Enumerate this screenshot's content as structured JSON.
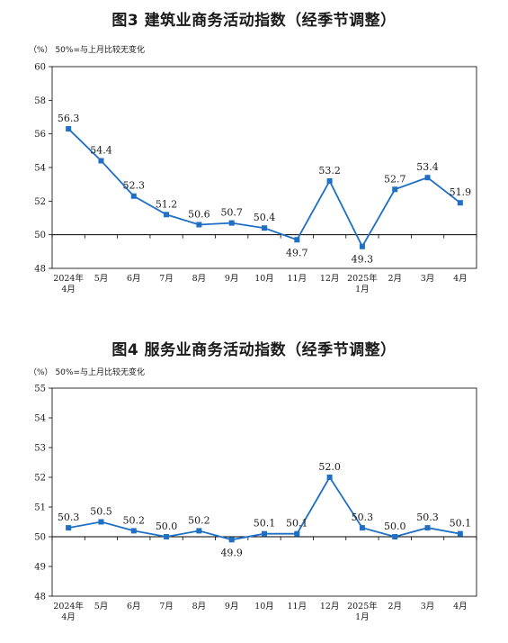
{
  "colors": {
    "line": "#1F6FC5",
    "axis": "#000000",
    "plot_border": "#000000"
  },
  "chart_data": [
    {
      "type": "line",
      "title": "图3  建筑业商务活动指数（经季节调整）",
      "ylabel": "（%）",
      "note": "50%=与上月比较无变化",
      "ylim": [
        48,
        60
      ],
      "yticks": [
        "48",
        "50",
        "52",
        "54",
        "56",
        "58",
        "60"
      ],
      "baseline": 50,
      "categories": [
        {
          "line1": "2024年",
          "line2": "4月"
        },
        {
          "line1": "5月",
          "line2": ""
        },
        {
          "line1": "6月",
          "line2": ""
        },
        {
          "line1": "7月",
          "line2": ""
        },
        {
          "line1": "8月",
          "line2": ""
        },
        {
          "line1": "9月",
          "line2": ""
        },
        {
          "line1": "10月",
          "line2": ""
        },
        {
          "line1": "11月",
          "line2": ""
        },
        {
          "line1": "12月",
          "line2": ""
        },
        {
          "line1": "2025年",
          "line2": "1月"
        },
        {
          "line1": "2月",
          "line2": ""
        },
        {
          "line1": "3月",
          "line2": ""
        },
        {
          "line1": "4月",
          "line2": ""
        }
      ],
      "values": [
        56.3,
        54.4,
        52.3,
        51.2,
        50.6,
        50.7,
        50.4,
        49.7,
        53.2,
        49.3,
        52.7,
        53.4,
        51.9
      ],
      "labels": [
        "56.3",
        "54.4",
        "52.3",
        "51.2",
        "50.6",
        "50.7",
        "50.4",
        "49.7",
        "53.2",
        "49.3",
        "52.7",
        "53.4",
        "51.9"
      ],
      "label_pos": [
        "above",
        "above",
        "above",
        "above",
        "above",
        "above",
        "above",
        "below",
        "above",
        "below",
        "above",
        "above",
        "above"
      ]
    },
    {
      "type": "line",
      "title": "图4  服务业商务活动指数（经季节调整）",
      "ylabel": "（%）",
      "note": "50%=与上月比较无变化",
      "ylim": [
        48,
        55
      ],
      "yticks": [
        "48",
        "49",
        "50",
        "51",
        "52",
        "53",
        "54",
        "55"
      ],
      "baseline": 50,
      "categories": [
        {
          "line1": "2024年",
          "line2": "4月"
        },
        {
          "line1": "5月",
          "line2": ""
        },
        {
          "line1": "6月",
          "line2": ""
        },
        {
          "line1": "7月",
          "line2": ""
        },
        {
          "line1": "8月",
          "line2": ""
        },
        {
          "line1": "9月",
          "line2": ""
        },
        {
          "line1": "10月",
          "line2": ""
        },
        {
          "line1": "11月",
          "line2": ""
        },
        {
          "line1": "12月",
          "line2": ""
        },
        {
          "line1": "2025年",
          "line2": "1月"
        },
        {
          "line1": "2月",
          "line2": ""
        },
        {
          "line1": "3月",
          "line2": ""
        },
        {
          "line1": "4月",
          "line2": ""
        }
      ],
      "values": [
        50.3,
        50.5,
        50.2,
        50.0,
        50.2,
        49.9,
        50.1,
        50.1,
        52.0,
        50.3,
        50.0,
        50.3,
        50.1
      ],
      "labels": [
        "50.3",
        "50.5",
        "50.2",
        "50.0",
        "50.2",
        "49.9",
        "50.1",
        "50.1",
        "52.0",
        "50.3",
        "50.0",
        "50.3",
        "50.1"
      ],
      "label_pos": [
        "above",
        "above",
        "above",
        "above",
        "above",
        "below",
        "above",
        "above",
        "above",
        "above",
        "above",
        "above",
        "above"
      ]
    }
  ]
}
